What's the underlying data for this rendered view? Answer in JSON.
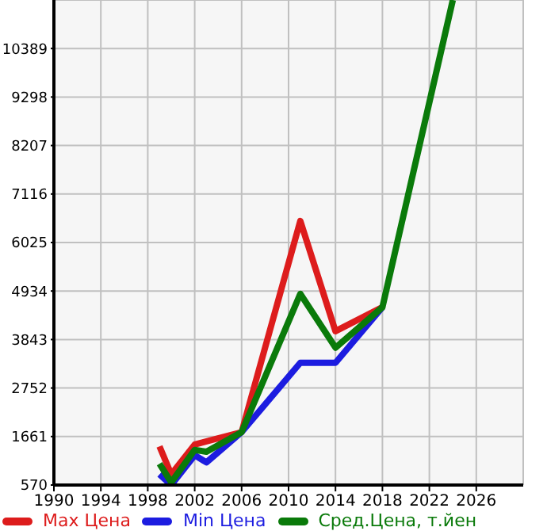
{
  "chart_data": {
    "type": "line",
    "x": [
      1999,
      2000,
      2002,
      2003,
      2006,
      2011,
      2014,
      2018,
      2024
    ],
    "series": [
      {
        "name": "Max Цена",
        "color": "#dd1c1c",
        "values": [
          1440,
          810,
          1480,
          null,
          1760,
          6510,
          4030,
          4570,
          null
        ]
      },
      {
        "name": "Min Цена",
        "color": "#1c1ce0",
        "values": [
          810,
          570,
          1240,
          1080,
          1760,
          3320,
          3320,
          4570,
          null
        ]
      },
      {
        "name": "Сред.Цена, т.йен",
        "color": "#0a7a0a",
        "values": [
          1050,
          630,
          1360,
          1320,
          1760,
          4870,
          3660,
          4570,
          11480
        ]
      }
    ],
    "xlim": [
      1990,
      2030
    ],
    "xticks": [
      1990,
      1994,
      1998,
      2002,
      2006,
      2010,
      2014,
      2018,
      2022,
      2026
    ],
    "ylim": [
      570,
      11480
    ],
    "yticks": [
      570,
      1661,
      2752,
      3843,
      4934,
      6025,
      7116,
      8207,
      9298,
      10389
    ],
    "grid": true,
    "legend": "bottom",
    "marker": "none",
    "line_style": "solid"
  }
}
